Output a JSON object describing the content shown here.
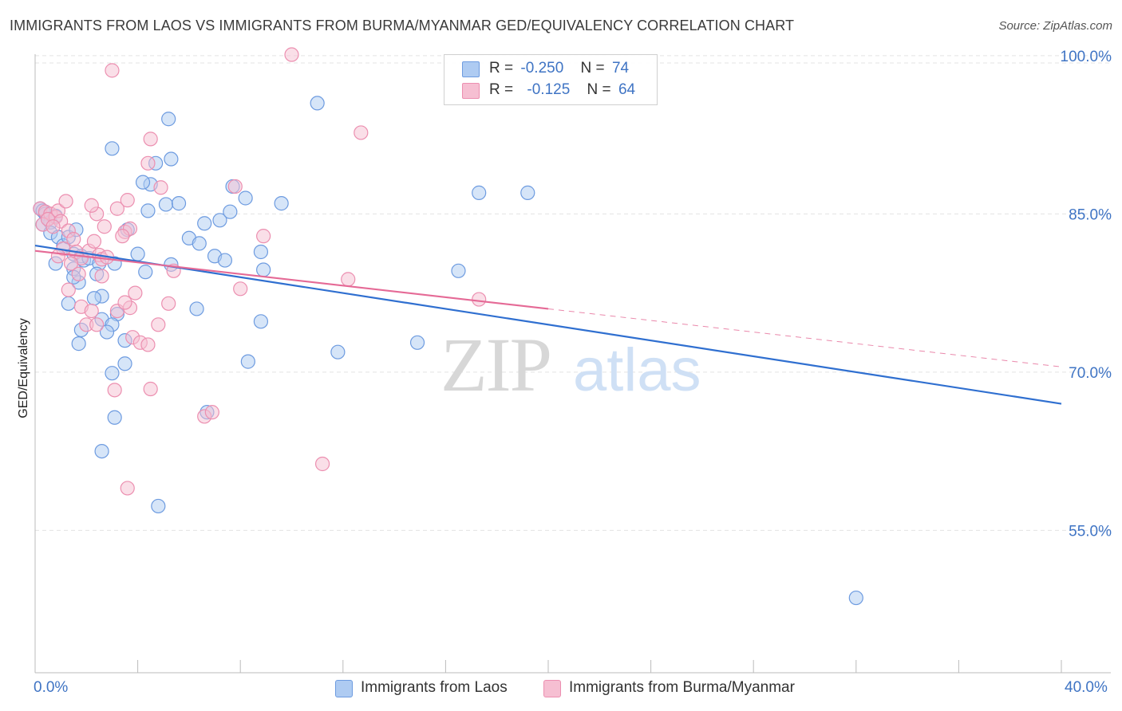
{
  "title": "IMMIGRANTS FROM LAOS VS IMMIGRANTS FROM BURMA/MYANMAR GED/EQUIVALENCY CORRELATION CHART",
  "source": "Source: ZipAtlas.com",
  "watermark": {
    "zip": "ZIP",
    "atlas": "atlas"
  },
  "legend": {
    "r_label": "R =",
    "n_label": "N =",
    "series1": {
      "r": "-0.250",
      "n": "74"
    },
    "series2": {
      "r": "-0.125",
      "n": "64"
    }
  },
  "bottom_legend": {
    "series1": "Immigrants from Laos",
    "series2": "Immigrants from Burma/Myanmar"
  },
  "colors": {
    "blue_fill": "#aecbf2",
    "blue_stroke": "#6d9be0",
    "blue_line": "#2f6fd0",
    "pink_fill": "#f6bfd2",
    "pink_stroke": "#ec8fb0",
    "pink_line": "#e56a96",
    "axis_text": "#3f74c4",
    "grid": "#e3e3e3"
  },
  "chart_data": {
    "type": "scatter",
    "title": "IMMIGRANTS FROM LAOS VS IMMIGRANTS FROM BURMA/MYANMAR GED/EQUIVALENCY CORRELATION CHART",
    "xlabel": "",
    "ylabel": "GED/Equivalency",
    "xlim": [
      0,
      40
    ],
    "ylim": [
      41.5,
      101.5
    ],
    "x_tick_labels": [
      "0.0%",
      "40.0%"
    ],
    "y_ticks": [
      55,
      70,
      85,
      100
    ],
    "y_tick_labels": [
      "55.0%",
      "70.0%",
      "85.0%",
      "100.0%"
    ],
    "grid": true,
    "series": [
      {
        "name": "Immigrants from Laos",
        "r": -0.25,
        "n": 74,
        "trend": {
          "x0": 0,
          "y0": 82.0,
          "x1": 40,
          "y1": 67.0
        },
        "points": [
          [
            0.2,
            85.5
          ],
          [
            0.3,
            85.3
          ],
          [
            0.4,
            85.0
          ],
          [
            0.5,
            84.5
          ],
          [
            0.6,
            84.2
          ],
          [
            0.8,
            84.8
          ],
          [
            0.3,
            84.0
          ],
          [
            0.6,
            83.2
          ],
          [
            0.9,
            82.8
          ],
          [
            1.1,
            82.0
          ],
          [
            1.3,
            82.8
          ],
          [
            0.8,
            80.3
          ],
          [
            1.5,
            81.2
          ],
          [
            1.8,
            81.0
          ],
          [
            1.5,
            79.8
          ],
          [
            1.6,
            83.5
          ],
          [
            1.9,
            80.6
          ],
          [
            2.1,
            80.8
          ],
          [
            1.7,
            78.5
          ],
          [
            2.5,
            80.3
          ],
          [
            2.4,
            79.3
          ],
          [
            1.5,
            79.0
          ],
          [
            2.6,
            77.2
          ],
          [
            1.3,
            76.5
          ],
          [
            2.3,
            77.0
          ],
          [
            2.6,
            75.0
          ],
          [
            3.2,
            75.5
          ],
          [
            1.8,
            74.0
          ],
          [
            3.0,
            74.5
          ],
          [
            2.8,
            73.8
          ],
          [
            1.7,
            72.7
          ],
          [
            3.5,
            73.0
          ],
          [
            3.5,
            70.8
          ],
          [
            3.0,
            69.9
          ],
          [
            3.1,
            65.7
          ],
          [
            2.6,
            62.5
          ],
          [
            4.8,
            57.3
          ],
          [
            3.6,
            83.5
          ],
          [
            3.0,
            91.2
          ],
          [
            4.5,
            87.8
          ],
          [
            4.2,
            88.0
          ],
          [
            4.7,
            89.8
          ],
          [
            5.3,
            90.2
          ],
          [
            5.2,
            94.0
          ],
          [
            4.4,
            85.3
          ],
          [
            5.1,
            85.9
          ],
          [
            5.6,
            86.0
          ],
          [
            6.0,
            82.7
          ],
          [
            6.4,
            82.2
          ],
          [
            6.6,
            84.1
          ],
          [
            5.3,
            80.2
          ],
          [
            4.0,
            81.2
          ],
          [
            4.3,
            79.5
          ],
          [
            7.2,
            84.4
          ],
          [
            7.6,
            85.2
          ],
          [
            7.0,
            81.0
          ],
          [
            7.4,
            80.6
          ],
          [
            7.7,
            87.6
          ],
          [
            8.2,
            86.5
          ],
          [
            8.8,
            81.4
          ],
          [
            8.9,
            79.7
          ],
          [
            8.8,
            74.8
          ],
          [
            9.6,
            86.0
          ],
          [
            6.3,
            76.0
          ],
          [
            8.3,
            71.0
          ],
          [
            6.7,
            66.2
          ],
          [
            11.0,
            95.5
          ],
          [
            11.8,
            71.9
          ],
          [
            14.9,
            72.8
          ],
          [
            16.5,
            79.6
          ],
          [
            17.3,
            87.0
          ],
          [
            19.2,
            87.0
          ],
          [
            32.0,
            48.6
          ],
          [
            3.1,
            80.3
          ]
        ]
      },
      {
        "name": "Immigrants from Burma/Myanmar",
        "r": -0.125,
        "n": 64,
        "trend": {
          "x0": 0,
          "y0": 81.5,
          "x1": 20,
          "y1": 76.0
        },
        "trend_dashed": {
          "x0": 20,
          "y0": 76.0,
          "x1": 40,
          "y1": 70.5
        },
        "points": [
          [
            0.2,
            85.5
          ],
          [
            0.4,
            85.2
          ],
          [
            0.6,
            85.0
          ],
          [
            0.8,
            84.7
          ],
          [
            0.3,
            84.0
          ],
          [
            0.5,
            84.5
          ],
          [
            0.9,
            85.3
          ],
          [
            1.2,
            86.2
          ],
          [
            1.0,
            84.3
          ],
          [
            0.7,
            83.8
          ],
          [
            1.3,
            83.4
          ],
          [
            1.5,
            82.6
          ],
          [
            1.1,
            81.7
          ],
          [
            1.6,
            81.4
          ],
          [
            1.8,
            80.8
          ],
          [
            0.9,
            81.0
          ],
          [
            1.4,
            80.3
          ],
          [
            2.1,
            81.5
          ],
          [
            2.3,
            82.4
          ],
          [
            2.5,
            81.1
          ],
          [
            1.7,
            79.3
          ],
          [
            2.6,
            80.7
          ],
          [
            2.8,
            80.9
          ],
          [
            1.3,
            77.8
          ],
          [
            1.8,
            76.2
          ],
          [
            2.2,
            75.8
          ],
          [
            2.0,
            74.5
          ],
          [
            2.4,
            74.5
          ],
          [
            3.2,
            75.8
          ],
          [
            3.7,
            76.1
          ],
          [
            3.9,
            77.5
          ],
          [
            3.5,
            76.6
          ],
          [
            3.8,
            73.3
          ],
          [
            4.1,
            72.8
          ],
          [
            4.4,
            72.6
          ],
          [
            4.8,
            74.5
          ],
          [
            3.1,
            68.3
          ],
          [
            4.5,
            68.4
          ],
          [
            3.6,
            59.0
          ],
          [
            2.4,
            85.0
          ],
          [
            3.2,
            85.5
          ],
          [
            2.2,
            85.8
          ],
          [
            2.7,
            83.8
          ],
          [
            3.5,
            83.3
          ],
          [
            3.7,
            83.6
          ],
          [
            3.4,
            82.9
          ],
          [
            3.6,
            86.3
          ],
          [
            4.4,
            89.8
          ],
          [
            4.5,
            92.1
          ],
          [
            4.9,
            87.5
          ],
          [
            5.2,
            76.5
          ],
          [
            5.4,
            79.6
          ],
          [
            6.6,
            65.8
          ],
          [
            6.9,
            66.2
          ],
          [
            7.8,
            87.6
          ],
          [
            8.0,
            77.9
          ],
          [
            8.9,
            82.9
          ],
          [
            10.0,
            100.1
          ],
          [
            11.2,
            61.3
          ],
          [
            12.2,
            78.8
          ],
          [
            12.7,
            92.7
          ],
          [
            17.3,
            76.9
          ],
          [
            3.0,
            98.6
          ],
          [
            2.6,
            79.1
          ]
        ]
      }
    ]
  }
}
